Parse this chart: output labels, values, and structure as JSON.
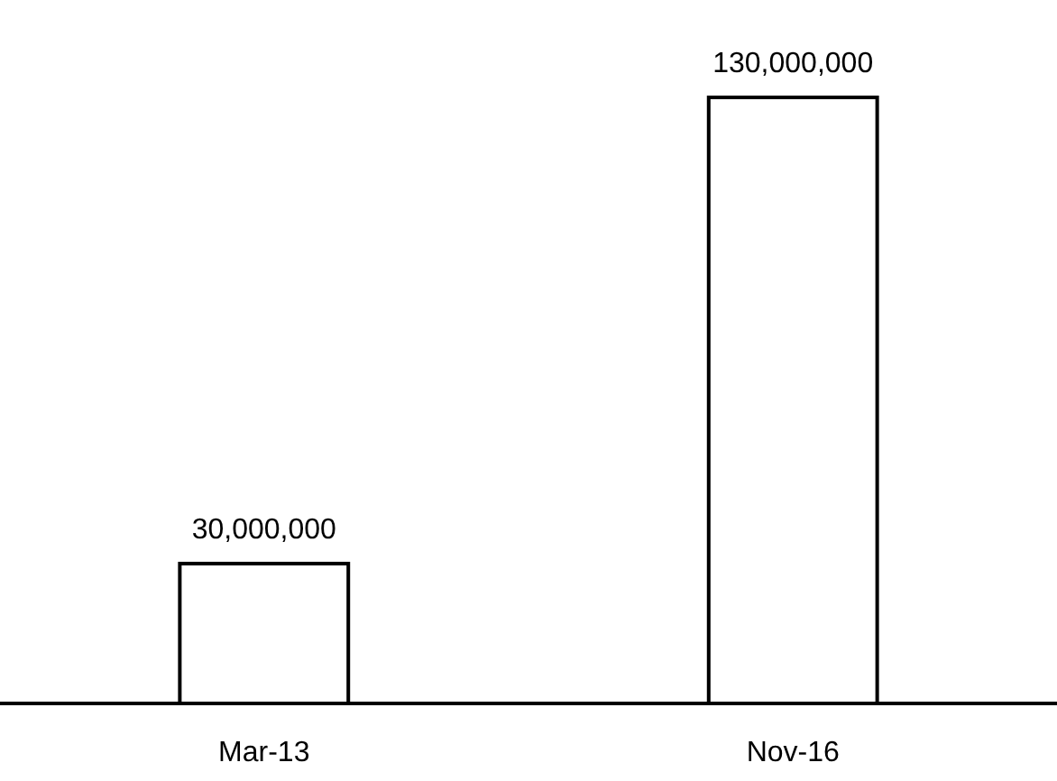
{
  "chart_data": {
    "type": "bar",
    "categories": [
      "Mar-13",
      "Nov-16"
    ],
    "values": [
      30000000,
      130000000
    ],
    "value_labels": [
      "30,000,000",
      "130,000,000"
    ],
    "color": "#ffffff"
  }
}
